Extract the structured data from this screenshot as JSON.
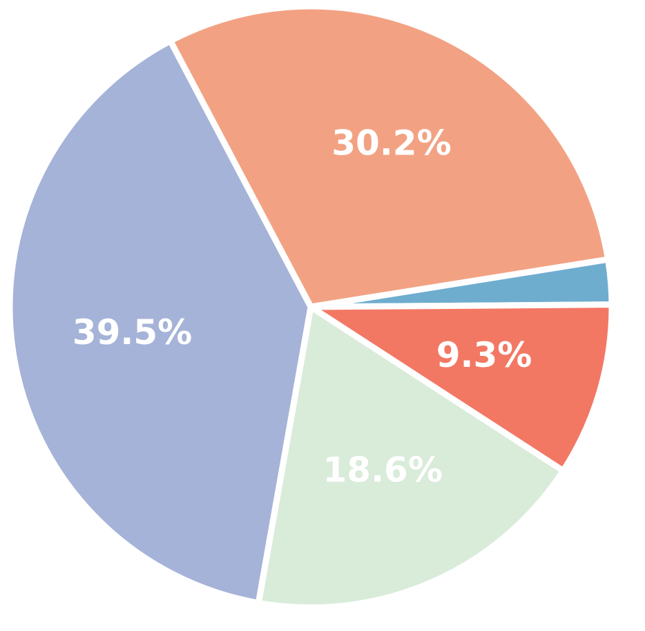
{
  "chart_data": {
    "type": "pie",
    "values": [
      30.2,
      2.4,
      9.3,
      18.6,
      39.5
    ],
    "value_labels": [
      "30.2%",
      null,
      "9.3%",
      "18.6%",
      "39.5%"
    ],
    "colors": [
      "#f2a283",
      "#6fadcf",
      "#f27864",
      "#d9ebd9",
      "#a5b3d8"
    ]
  }
}
